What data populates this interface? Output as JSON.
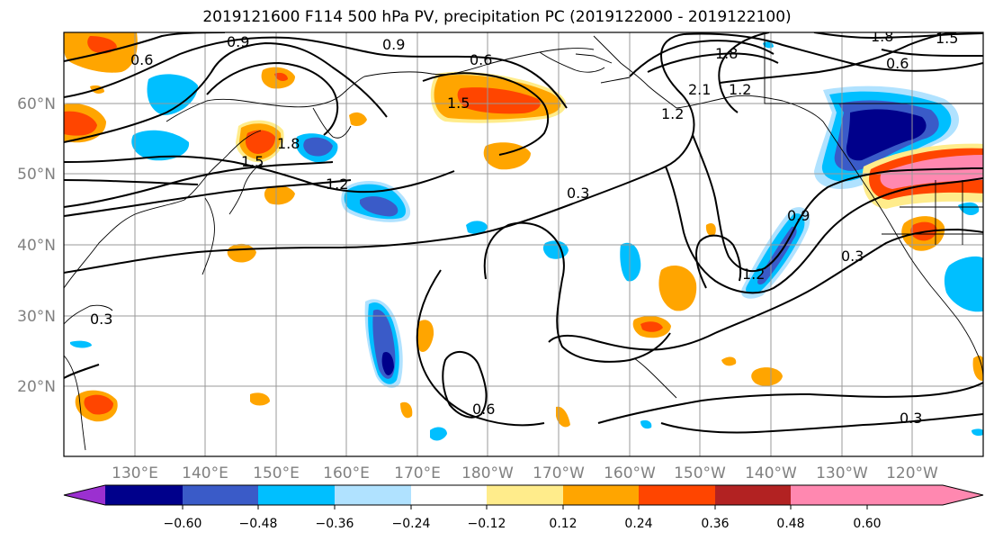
{
  "title": "2019121600 F114 500 hPa PV, precipitation PC (2019122000 - 2019122100)",
  "map": {
    "latitude_labels": [
      "60°N",
      "50°N",
      "40°N",
      "30°N",
      "20°N"
    ],
    "longitude_labels": [
      "130°E",
      "140°E",
      "150°E",
      "160°E",
      "170°E",
      "180°W",
      "170°W",
      "160°W",
      "150°W",
      "140°W",
      "130°W",
      "120°W"
    ],
    "pv_contour_labels": [
      "0.6",
      "0.9",
      "0.9",
      "0.6",
      "1.5",
      "1.5",
      "1.8",
      "1.2",
      "0.3",
      "0.3",
      "0.6",
      "1.8",
      "1.8",
      "1.5",
      "2.1",
      "1.2",
      "0.6",
      "0.9",
      "1.2",
      "0.3",
      "0.3",
      "1.2"
    ]
  },
  "colorbar": {
    "tick_labels": [
      "−0.60",
      "−0.48",
      "−0.36",
      "−0.24",
      "−0.12",
      "0.12",
      "0.24",
      "0.36",
      "0.48",
      "0.60"
    ],
    "colors": [
      "#9b30d0",
      "#00008b",
      "#3a5bc8",
      "#00bfff",
      "#b0e2ff",
      "#ffffff",
      "#ffec8b",
      "#ffa500",
      "#ff4500",
      "#b22222",
      "#ff88b0"
    ]
  }
}
